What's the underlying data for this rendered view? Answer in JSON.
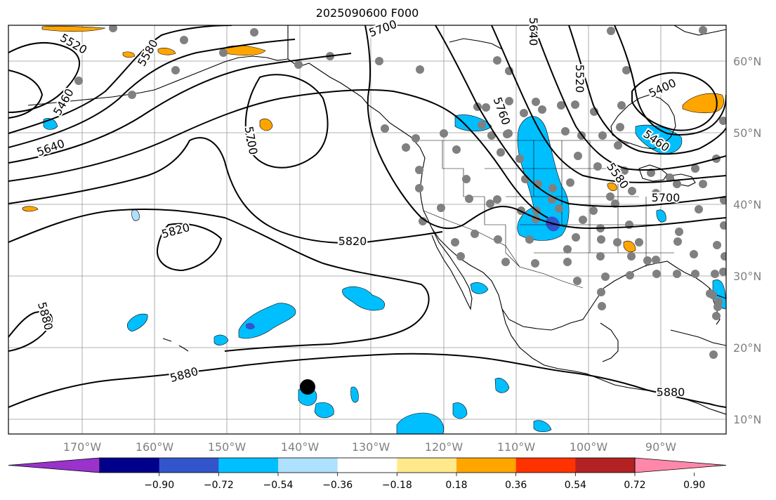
{
  "title": "2025090600 F000",
  "longitude_labels": [
    "170°W",
    "160°W",
    "150°W",
    "140°W",
    "130°W",
    "120°W",
    "110°W",
    "100°W",
    "90°W"
  ],
  "latitude_labels": [
    "60°N",
    "50°N",
    "40°N",
    "30°N",
    "20°N",
    "10°N"
  ],
  "contour_labels": [
    "5520",
    "5580",
    "5460",
    "5640",
    "5700",
    "5700",
    "5820",
    "5820",
    "5880",
    "5880",
    "5880",
    "5760",
    "5520",
    "5400",
    "5460",
    "5580",
    "5700",
    "5640"
  ],
  "colorbar": {
    "tick_labels": [
      "−0.90",
      "−0.72",
      "−0.54",
      "−0.36",
      "−0.18",
      "0.18",
      "0.36",
      "0.54",
      "0.72",
      "0.90"
    ],
    "colors": [
      "#9933cc",
      "#00008b",
      "#3355cc",
      "#00bfff",
      "#aee0ff",
      "#ffffff",
      "#ffe98a",
      "#ffa500",
      "#ff3300",
      "#b22222",
      "#ff88aa"
    ]
  },
  "colors": {
    "negative_fill": "#00bfff",
    "negative_light": "#aee0ff",
    "negative_dark": "#3355cc",
    "positive_fill": "#ffa500",
    "station_dot": "#808080",
    "grid": "#999999"
  }
}
